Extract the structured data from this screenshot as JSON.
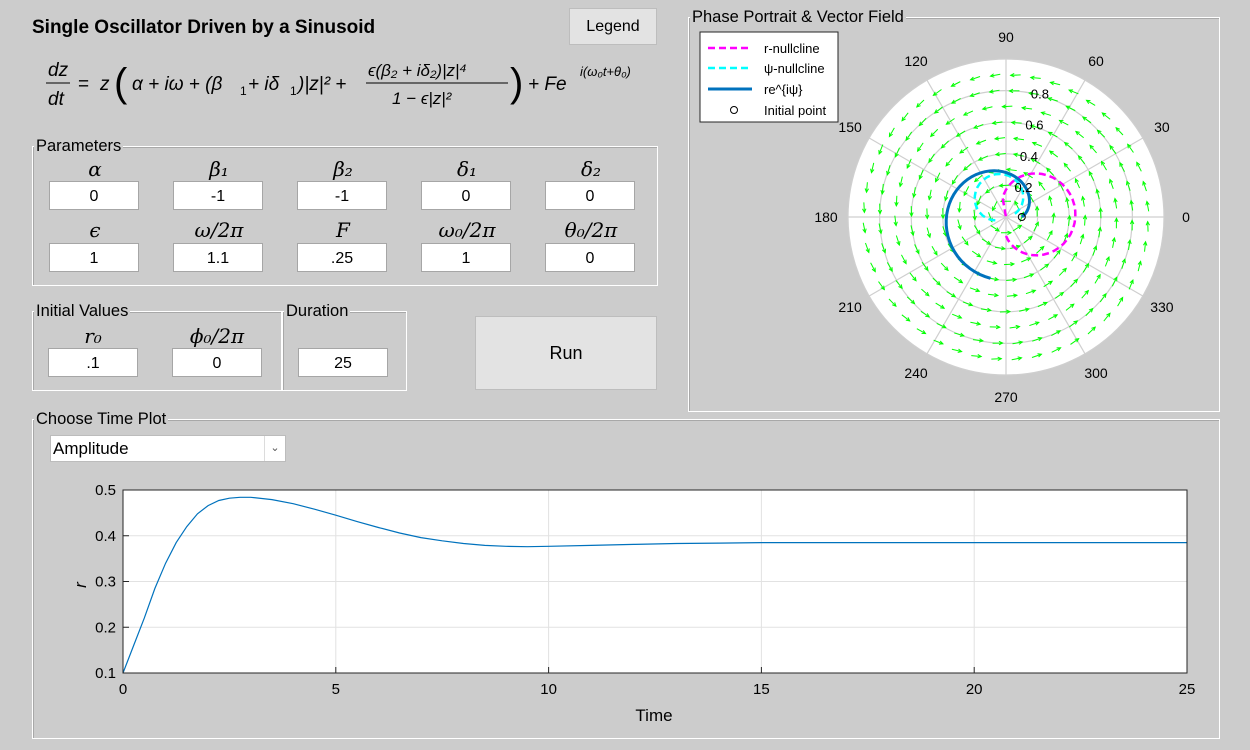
{
  "header": {
    "title": "Single Oscillator Driven by a Sinusoid",
    "legend_button": "Legend",
    "equation": {
      "lhs_num": "dz",
      "lhs_den": "dt",
      "eq": "=",
      "z": "z",
      "alpha_omega": "α + iω + (β",
      "b1": "1",
      "d1part": " + iδ",
      "d1": "1",
      "abs2": ")|z|² +",
      "frac_num": "ϵ(β₂ + iδ₂)|z|⁴",
      "frac_den": "1 − ϵ|z|²",
      "tail": "+ Fe",
      "exp": "i(ω₀t+θ₀)"
    }
  },
  "parameters": {
    "title": "Parameters",
    "row1": [
      {
        "label": "α",
        "value": "0"
      },
      {
        "label": "β₁",
        "value": "-1"
      },
      {
        "label": "β₂",
        "value": "-1"
      },
      {
        "label": "δ₁",
        "value": "0"
      },
      {
        "label": "δ₂",
        "value": "0"
      }
    ],
    "row2": [
      {
        "label": "ϵ",
        "value": "1"
      },
      {
        "label": "ω/2π",
        "value": "1.1"
      },
      {
        "label": "F",
        "value": ".25"
      },
      {
        "label": "ω₀/2π",
        "value": "1"
      },
      {
        "label": "θ₀/2π",
        "value": "0"
      }
    ]
  },
  "initial_values": {
    "title": "Initial Values",
    "items": [
      {
        "label": "r₀",
        "value": ".1"
      },
      {
        "label": "ϕ₀/2π",
        "value": "0"
      }
    ]
  },
  "duration": {
    "title": "Duration",
    "value": "25"
  },
  "run_button": "Run",
  "phase_portrait": {
    "title": "Phase Portrait & Vector Field",
    "angle_labels": [
      "0",
      "30",
      "60",
      "90",
      "120",
      "150",
      "180",
      "210",
      "240",
      "270",
      "300",
      "330"
    ],
    "radius_labels": [
      "0.2",
      "0.4",
      "0.6",
      "0.8"
    ],
    "legend": [
      {
        "label": "r-nullcline",
        "color": "#ff00ff",
        "style": "dashed"
      },
      {
        "label": "ψ-nullcline",
        "color": "#00ffff",
        "style": "dashed"
      },
      {
        "label": "re^{iψ}",
        "color": "#0072bd",
        "style": "solid"
      },
      {
        "label": "Initial point",
        "color": "#000000",
        "style": "circle"
      }
    ],
    "vector_color": "#00ff00"
  },
  "time_plot": {
    "title": "Choose Time Plot",
    "selected": "Amplitude"
  },
  "chart_data": {
    "type": "line",
    "xlabel": "Time",
    "ylabel": "r",
    "xlim": [
      0,
      25
    ],
    "ylim": [
      0.1,
      0.5
    ],
    "xticks": [
      0,
      5,
      10,
      15,
      20,
      25
    ],
    "yticks": [
      0.1,
      0.2,
      0.3,
      0.4,
      0.5
    ],
    "grid": true,
    "color": "#0072bd",
    "x": [
      0,
      0.25,
      0.5,
      0.75,
      1,
      1.25,
      1.5,
      1.75,
      2,
      2.25,
      2.5,
      2.75,
      3,
      3.5,
      4,
      4.5,
      5,
      5.5,
      6,
      6.5,
      7,
      7.5,
      8,
      8.5,
      9,
      9.5,
      10,
      11,
      12,
      13,
      14,
      15,
      16,
      18,
      20,
      22,
      25
    ],
    "y": [
      0.1,
      0.16,
      0.22,
      0.285,
      0.34,
      0.385,
      0.42,
      0.448,
      0.466,
      0.477,
      0.482,
      0.484,
      0.484,
      0.479,
      0.47,
      0.458,
      0.445,
      0.431,
      0.418,
      0.406,
      0.396,
      0.389,
      0.383,
      0.379,
      0.377,
      0.376,
      0.377,
      0.379,
      0.381,
      0.383,
      0.384,
      0.385,
      0.385,
      0.385,
      0.385,
      0.385,
      0.385
    ]
  }
}
